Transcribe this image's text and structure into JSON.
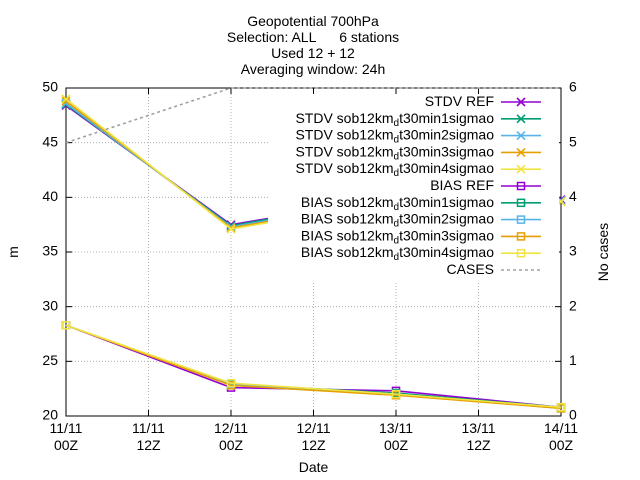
{
  "chart_data": {
    "type": "line",
    "title_lines": [
      "Geopotential 700hPa",
      "Selection: ALL      6 stations",
      "Used 12 + 12",
      "Averaging window: 24h"
    ],
    "xlabel": "Date",
    "ylabel": "m",
    "y2label": "No cases",
    "x_ticks": [
      {
        "x": 0,
        "line1": "11/11",
        "line2": "00Z"
      },
      {
        "x": 0.5,
        "line1": "11/11",
        "line2": "12Z"
      },
      {
        "x": 1,
        "line1": "12/11",
        "line2": "00Z"
      },
      {
        "x": 1.5,
        "line1": "12/11",
        "line2": "12Z"
      },
      {
        "x": 2,
        "line1": "13/11",
        "line2": "00Z"
      },
      {
        "x": 2.5,
        "line1": "13/11",
        "line2": "12Z"
      },
      {
        "x": 3,
        "line1": "14/11",
        "line2": "00Z"
      }
    ],
    "xlim": [
      0,
      3
    ],
    "ylim": [
      20,
      50
    ],
    "y_ticks": [
      20,
      25,
      30,
      35,
      40,
      45,
      50
    ],
    "y2lim": [
      0,
      6
    ],
    "y2_ticks": [
      0,
      1,
      2,
      3,
      4,
      5,
      6
    ],
    "grid": true,
    "legend_position": "top-right",
    "x": [
      0,
      1,
      2,
      3
    ],
    "series": [
      {
        "name": "STDV REF",
        "sub": "",
        "suffix": "",
        "color": "#9400d3",
        "marker": "x",
        "axis": "y",
        "values": [
          48.4,
          37.5,
          40.0,
          39.8
        ]
      },
      {
        "name": "STDV sob12km",
        "sub": "d",
        "suffix": "t30min1sigmao",
        "color": "#009e73",
        "marker": "x",
        "axis": "y",
        "values": [
          48.5,
          37.4,
          40.1,
          39.7
        ]
      },
      {
        "name": "STDV sob12km",
        "sub": "d",
        "suffix": "t30min2sigmao",
        "color": "#56b4e9",
        "marker": "x",
        "axis": "y",
        "values": [
          48.6,
          37.3,
          39.9,
          39.7
        ]
      },
      {
        "name": "STDV sob12km",
        "sub": "d",
        "suffix": "t30min3sigmao",
        "color": "#e69f00",
        "marker": "x",
        "axis": "y",
        "values": [
          48.8,
          37.2,
          39.8,
          39.6
        ]
      },
      {
        "name": "STDV sob12km",
        "sub": "d",
        "suffix": "t30min4sigmao",
        "color": "#f0e442",
        "marker": "x",
        "axis": "y",
        "values": [
          49.0,
          37.1,
          39.7,
          39.6
        ]
      },
      {
        "name": "BIAS REF",
        "sub": "",
        "suffix": "",
        "color": "#9400d3",
        "marker": "s",
        "axis": "y",
        "values": [
          28.3,
          22.6,
          22.3,
          20.8
        ]
      },
      {
        "name": "BIAS sob12km",
        "sub": "d",
        "suffix": "t30min1sigmao",
        "color": "#009e73",
        "marker": "s",
        "axis": "y",
        "values": [
          28.3,
          22.9,
          22.1,
          20.8
        ]
      },
      {
        "name": "BIAS sob12km",
        "sub": "d",
        "suffix": "t30min2sigmao",
        "color": "#56b4e9",
        "marker": "s",
        "axis": "y",
        "values": [
          28.3,
          22.9,
          22.0,
          20.7
        ]
      },
      {
        "name": "BIAS sob12km",
        "sub": "d",
        "suffix": "t30min3sigmao",
        "color": "#e69f00",
        "marker": "s",
        "axis": "y",
        "values": [
          28.3,
          22.8,
          21.9,
          20.7
        ]
      },
      {
        "name": "BIAS sob12km",
        "sub": "d",
        "suffix": "t30min4sigmao",
        "color": "#f0e442",
        "marker": "s",
        "axis": "y",
        "values": [
          28.3,
          23.0,
          22.0,
          20.8
        ]
      },
      {
        "name": "CASES",
        "sub": "",
        "suffix": "",
        "color": "#a0a0a0",
        "marker": "none",
        "axis": "y2",
        "dashed": true,
        "values": [
          5,
          6,
          6,
          6
        ]
      }
    ]
  }
}
